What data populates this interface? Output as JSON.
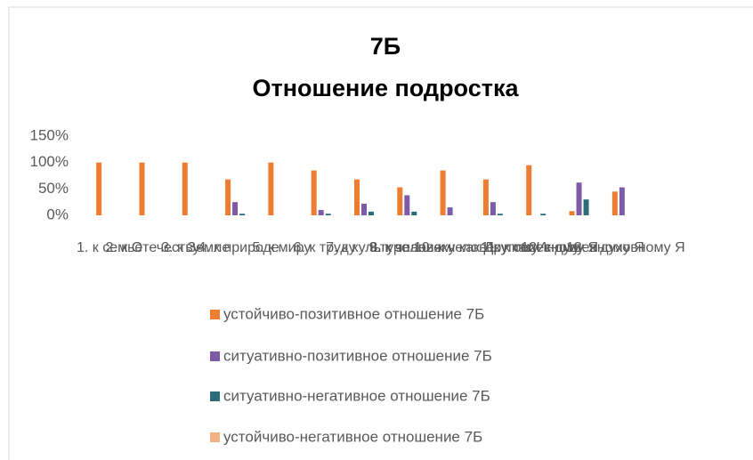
{
  "chart_data": {
    "type": "bar",
    "title": [
      "7Б",
      "Отношение подростка"
    ],
    "categories": [
      "1. к семье",
      "2. к Отечеству",
      "3. к Земле",
      "4. к природе",
      "5. к миру",
      "6. к труду",
      "7. к культуре",
      "8. к знаниям",
      "9. к человеку как Другому",
      "10. к человеку как Иному",
      "11. к телесному Я",
      "12. к душевному Я",
      "13. к духовному Я"
    ],
    "series": [
      {
        "name": "устойчиво-позитивное отношение 7Б",
        "color": "#ed7d31",
        "values": [
          100,
          100,
          100,
          68,
          100,
          85,
          68,
          53,
          85,
          68,
          95,
          8,
          45
        ]
      },
      {
        "name": "ситуативно-позитивное отношение 7Б",
        "color": "#7e5ba6",
        "values": [
          0,
          0,
          0,
          25,
          0,
          10,
          22,
          38,
          15,
          25,
          0,
          62,
          53
        ]
      },
      {
        "name": "ситуативно-негативное отношение 7Б",
        "color": "#2c6b78",
        "values": [
          0,
          0,
          0,
          3,
          0,
          3,
          7,
          7,
          0,
          3,
          3,
          30,
          0
        ]
      },
      {
        "name": "устойчиво-негативное отношение 7Б",
        "color": "#f4b183",
        "values": [
          0,
          0,
          0,
          0,
          0,
          0,
          0,
          0,
          0,
          0,
          0,
          0,
          0
        ]
      }
    ],
    "ylim": [
      0,
      150
    ],
    "yticks": [
      {
        "value": 0,
        "label": "0%"
      },
      {
        "value": 50,
        "label": "50%"
      },
      {
        "value": 100,
        "label": "100%"
      },
      {
        "value": 150,
        "label": "150%"
      }
    ],
    "grid": false,
    "legend": "bottom"
  }
}
